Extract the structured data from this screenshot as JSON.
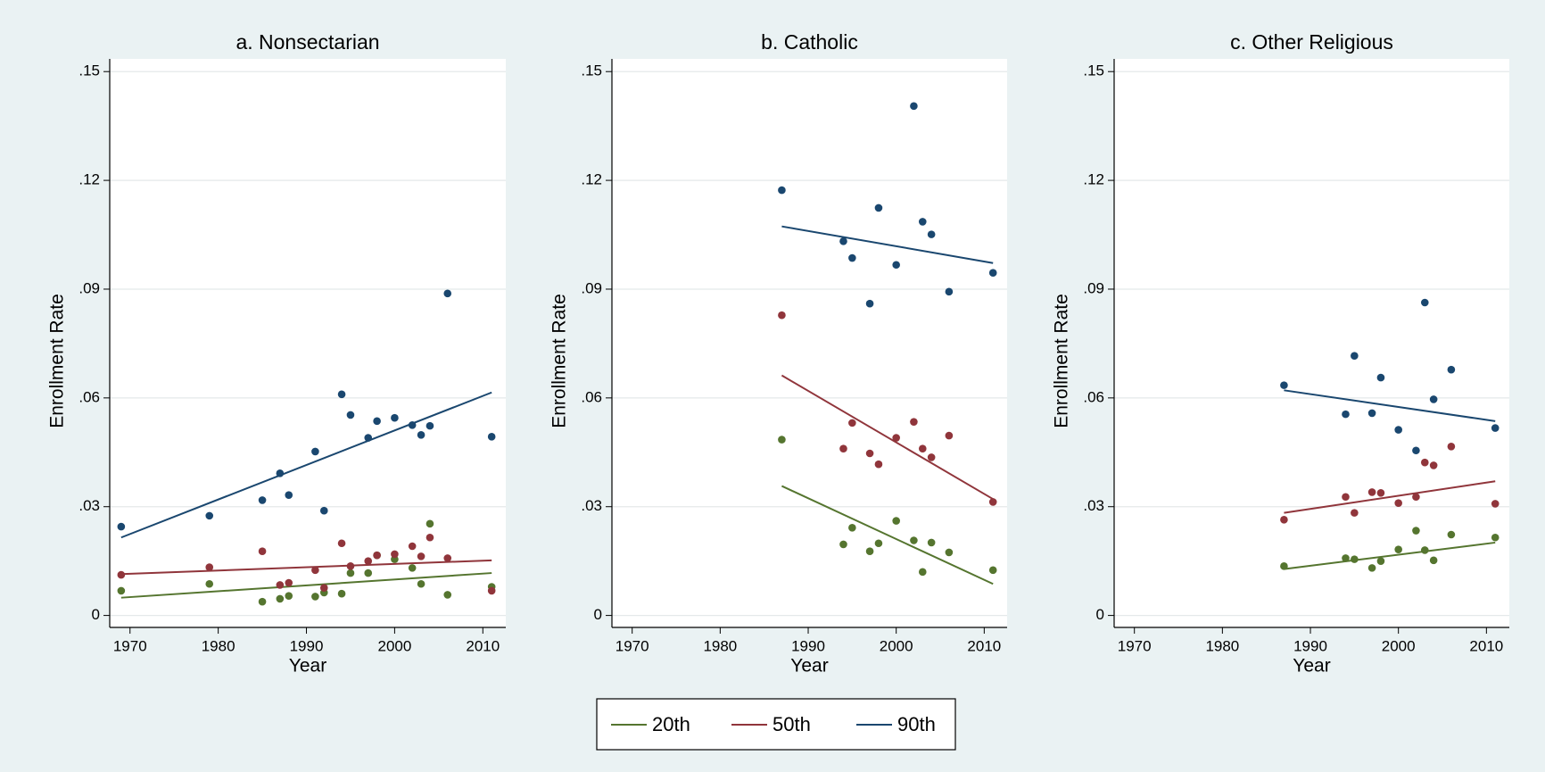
{
  "chart_data": [
    {
      "type": "scatter",
      "title": "a. Nonsectarian",
      "x_label": "Year",
      "y_label": "Enrollment Rate",
      "xlim": [
        1967.7,
        2012.6
      ],
      "ylim": [
        -0.0033,
        0.1535
      ],
      "xticks": [
        1970,
        1980,
        1990,
        2000,
        2010
      ],
      "yticks": [
        0,
        {
          "value": 0.03,
          "label": ".03"
        },
        {
          "value": 0.06,
          "label": ".06"
        },
        {
          "value": 0.09,
          "label": ".09"
        },
        {
          "value": 0.12,
          "label": ".12"
        },
        {
          "value": 0.15,
          "label": ".15"
        }
      ],
      "grid": true,
      "series": [
        {
          "name": "20th",
          "color": "#55752f",
          "x": [
            1969,
            1979,
            1985,
            1987,
            1988,
            1991,
            1992,
            1994,
            1995,
            1997,
            1998,
            2000,
            2002,
            2003,
            2004,
            2006,
            2011
          ],
          "values": [
            0.0068,
            0.0087,
            0.0038,
            0.0046,
            0.0054,
            0.0052,
            0.0063,
            0.006,
            0.0117,
            0.0117,
            0.0166,
            0.0155,
            0.0131,
            0.0087,
            0.0253,
            0.0057,
            0.0079
          ],
          "fit": {
            "x": [
              1969,
              2011
            ],
            "values": [
              0.0049,
              0.0117
            ]
          }
        },
        {
          "name": "50th",
          "color": "#90353b",
          "x": [
            1969,
            1979,
            1985,
            1987,
            1988,
            1991,
            1992,
            1994,
            1995,
            1997,
            1998,
            2000,
            2002,
            2003,
            2004,
            2006,
            2011
          ],
          "values": [
            0.0112,
            0.0133,
            0.0177,
            0.0084,
            0.009,
            0.0125,
            0.0076,
            0.0199,
            0.0136,
            0.015,
            0.0166,
            0.0169,
            0.0191,
            0.0163,
            0.0215,
            0.0158,
            0.0068
          ],
          "fit": {
            "x": [
              1969,
              2011
            ],
            "values": [
              0.0114,
              0.0152
            ]
          }
        },
        {
          "name": "90th",
          "color": "#1a476f",
          "x": [
            1969,
            1979,
            1985,
            1987,
            1988,
            1991,
            1992,
            1994,
            1995,
            1997,
            1998,
            2000,
            2002,
            2003,
            2004,
            2006,
            2011
          ],
          "values": [
            0.0245,
            0.0275,
            0.0318,
            0.0392,
            0.0332,
            0.0452,
            0.0289,
            0.061,
            0.0553,
            0.049,
            0.0536,
            0.0545,
            0.0525,
            0.0498,
            0.0523,
            0.0888,
            0.0493
          ],
          "fit": {
            "x": [
              1969,
              2011
            ],
            "values": [
              0.0215,
              0.0615
            ]
          }
        }
      ]
    },
    {
      "type": "scatter",
      "title": "b. Catholic",
      "x_label": "Year",
      "y_label": "Enrollment Rate",
      "xlim": [
        1967.7,
        2012.6
      ],
      "ylim": [
        -0.0033,
        0.1535
      ],
      "xticks": [
        1970,
        1980,
        1990,
        2000,
        2010
      ],
      "yticks": [
        0,
        {
          "value": 0.03,
          "label": ".03"
        },
        {
          "value": 0.06,
          "label": ".06"
        },
        {
          "value": 0.09,
          "label": ".09"
        },
        {
          "value": 0.12,
          "label": ".12"
        },
        {
          "value": 0.15,
          "label": ".15"
        }
      ],
      "grid": true,
      "series": [
        {
          "name": "20th",
          "color": "#55752f",
          "x": [
            1987,
            1994,
            1995,
            1997,
            1998,
            2000,
            2002,
            2003,
            2004,
            2006,
            2011
          ],
          "values": [
            0.0485,
            0.0196,
            0.0242,
            0.0177,
            0.0199,
            0.0261,
            0.0207,
            0.012,
            0.0201,
            0.0174,
            0.0125
          ],
          "fit": {
            "x": [
              1987,
              2011
            ],
            "values": [
              0.0357,
              0.0087
            ]
          }
        },
        {
          "name": "50th",
          "color": "#90353b",
          "x": [
            1987,
            1994,
            1995,
            1997,
            1998,
            2000,
            2002,
            2003,
            2004,
            2006,
            2011
          ],
          "values": [
            0.0828,
            0.046,
            0.0531,
            0.0447,
            0.0417,
            0.049,
            0.0534,
            0.046,
            0.0436,
            0.0496,
            0.0313
          ],
          "fit": {
            "x": [
              1987,
              2011
            ],
            "values": [
              0.0662,
              0.0321
            ]
          }
        },
        {
          "name": "90th",
          "color": "#1a476f",
          "x": [
            1987,
            1994,
            1995,
            1997,
            1998,
            2000,
            2002,
            2003,
            2004,
            2006,
            2011
          ],
          "values": [
            0.1173,
            0.1032,
            0.0986,
            0.086,
            0.1124,
            0.0967,
            0.1405,
            0.1086,
            0.1051,
            0.0893,
            0.0945
          ],
          "fit": {
            "x": [
              1987,
              2011
            ],
            "values": [
              0.1073,
              0.0972
            ]
          }
        }
      ]
    },
    {
      "type": "scatter",
      "title": "c. Other Religious",
      "x_label": "Year",
      "y_label": "Enrollment Rate",
      "xlim": [
        1967.7,
        2012.6
      ],
      "ylim": [
        -0.0033,
        0.1535
      ],
      "xticks": [
        1970,
        1980,
        1990,
        2000,
        2010
      ],
      "yticks": [
        0,
        {
          "value": 0.03,
          "label": ".03"
        },
        {
          "value": 0.06,
          "label": ".06"
        },
        {
          "value": 0.09,
          "label": ".09"
        },
        {
          "value": 0.12,
          "label": ".12"
        },
        {
          "value": 0.15,
          "label": ".15"
        }
      ],
      "grid": true,
      "series": [
        {
          "name": "20th",
          "color": "#55752f",
          "x": [
            1987,
            1994,
            1995,
            1997,
            1998,
            2000,
            2002,
            2003,
            2004,
            2006,
            2011
          ],
          "values": [
            0.0136,
            0.0158,
            0.0155,
            0.0131,
            0.015,
            0.0182,
            0.0234,
            0.018,
            0.0152,
            0.0223,
            0.0215
          ],
          "fit": {
            "x": [
              1987,
              2011
            ],
            "values": [
              0.0128,
              0.0201
            ]
          }
        },
        {
          "name": "50th",
          "color": "#90353b",
          "x": [
            1987,
            1994,
            1995,
            1997,
            1998,
            2000,
            2002,
            2003,
            2004,
            2006,
            2011
          ],
          "values": [
            0.0264,
            0.0327,
            0.0283,
            0.034,
            0.0338,
            0.031,
            0.0327,
            0.0422,
            0.0414,
            0.0466,
            0.0308
          ],
          "fit": {
            "x": [
              1987,
              2011
            ],
            "values": [
              0.0283,
              0.037
            ]
          }
        },
        {
          "name": "90th",
          "color": "#1a476f",
          "x": [
            1987,
            1994,
            1995,
            1997,
            1998,
            2000,
            2002,
            2003,
            2004,
            2006,
            2011
          ],
          "values": [
            0.0635,
            0.0555,
            0.0716,
            0.0558,
            0.0656,
            0.0512,
            0.0455,
            0.0863,
            0.0596,
            0.0678,
            0.0517
          ],
          "fit": {
            "x": [
              1987,
              2011
            ],
            "values": [
              0.0621,
              0.0536
            ]
          }
        }
      ]
    }
  ]
}
